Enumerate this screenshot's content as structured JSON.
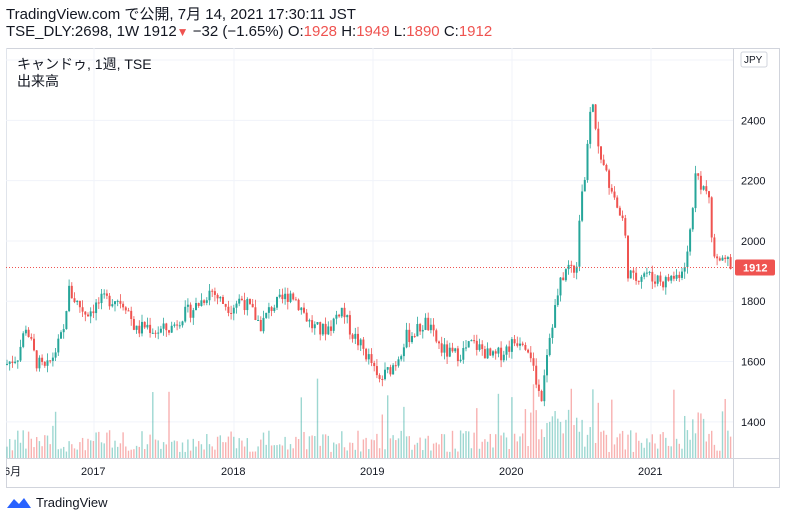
{
  "header": {
    "line1": "TradingView.com で公開, 7月 14, 2021 17:30:11 JST",
    "symbol_info": "TSE_DLY:2698, 1W 1912",
    "arrow": "▼",
    "change": "−32 (−1.65%)",
    "o_label": "O:",
    "o_value": "1928",
    "h_label": "H:",
    "h_value": "1949",
    "l_label": "L:",
    "l_value": "1890",
    "c_label": "C:",
    "c_value": "1912"
  },
  "legend": {
    "title": "キャンドゥ, 1週, TSE",
    "volume_label": "出来高"
  },
  "footer": {
    "brand": "TradingView"
  },
  "colors": {
    "up": "#26a69a",
    "down": "#ef5350",
    "grid": "#f0f3fa",
    "axis_text": "#131722"
  },
  "chart_data": {
    "type": "candlestick",
    "currency": "JPY",
    "last_price": 1912,
    "ylim": [
      1280,
      2640
    ],
    "y_ticks": [
      1400,
      1600,
      1800,
      2000,
      2200,
      2400,
      2600
    ],
    "x_ticks": [
      "6月",
      "2017",
      "2018",
      "2019",
      "2020",
      "2021"
    ],
    "volume_shown": true,
    "price_path_approx": [
      [
        0,
        1590
      ],
      [
        12,
        1620
      ],
      [
        20,
        1720
      ],
      [
        30,
        1600
      ],
      [
        40,
        1570
      ],
      [
        50,
        1640
      ],
      [
        58,
        1700
      ],
      [
        62,
        1840
      ],
      [
        70,
        1800
      ],
      [
        80,
        1760
      ],
      [
        95,
        1800
      ],
      [
        110,
        1810
      ],
      [
        120,
        1790
      ],
      [
        130,
        1700
      ],
      [
        140,
        1720
      ],
      [
        150,
        1700
      ],
      [
        165,
        1710
      ],
      [
        175,
        1750
      ],
      [
        185,
        1770
      ],
      [
        195,
        1800
      ],
      [
        205,
        1840
      ],
      [
        215,
        1800
      ],
      [
        225,
        1780
      ],
      [
        235,
        1810
      ],
      [
        245,
        1770
      ],
      [
        255,
        1720
      ],
      [
        265,
        1780
      ],
      [
        275,
        1800
      ],
      [
        285,
        1830
      ],
      [
        295,
        1780
      ],
      [
        305,
        1720
      ],
      [
        315,
        1700
      ],
      [
        325,
        1720
      ],
      [
        335,
        1780
      ],
      [
        345,
        1700
      ],
      [
        355,
        1650
      ],
      [
        365,
        1600
      ],
      [
        372,
        1530
      ],
      [
        380,
        1560
      ],
      [
        390,
        1600
      ],
      [
        400,
        1680
      ],
      [
        410,
        1700
      ],
      [
        420,
        1730
      ],
      [
        428,
        1680
      ],
      [
        436,
        1640
      ],
      [
        446,
        1620
      ],
      [
        456,
        1630
      ],
      [
        466,
        1660
      ],
      [
        476,
        1640
      ],
      [
        486,
        1610
      ],
      [
        496,
        1630
      ],
      [
        506,
        1660
      ],
      [
        516,
        1680
      ],
      [
        524,
        1640
      ],
      [
        530,
        1540
      ],
      [
        535,
        1470
      ],
      [
        540,
        1620
      ],
      [
        548,
        1760
      ],
      [
        556,
        1880
      ],
      [
        564,
        1920
      ],
      [
        570,
        1900
      ],
      [
        575,
        2160
      ],
      [
        580,
        2220
      ],
      [
        585,
        2480
      ],
      [
        590,
        2380
      ],
      [
        595,
        2260
      ],
      [
        600,
        2220
      ],
      [
        606,
        2180
      ],
      [
        612,
        2100
      ],
      [
        618,
        2060
      ],
      [
        622,
        1900
      ],
      [
        628,
        1870
      ],
      [
        634,
        1890
      ],
      [
        640,
        1900
      ],
      [
        646,
        1870
      ],
      [
        652,
        1880
      ],
      [
        658,
        1860
      ],
      [
        664,
        1880
      ],
      [
        670,
        1880
      ],
      [
        676,
        1910
      ],
      [
        682,
        1960
      ],
      [
        686,
        2100
      ],
      [
        690,
        2230
      ],
      [
        696,
        2180
      ],
      [
        702,
        2160
      ],
      [
        706,
        2000
      ],
      [
        710,
        1930
      ],
      [
        716,
        1920
      ],
      [
        722,
        1930
      ],
      [
        728,
        1912
      ]
    ]
  }
}
